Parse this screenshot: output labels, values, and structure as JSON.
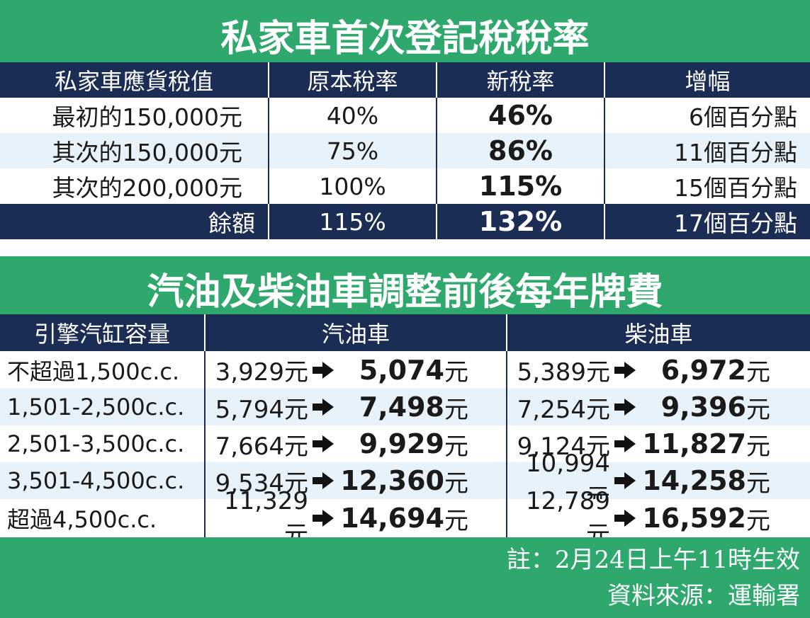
{
  "table1": {
    "title": "私家車首次登記稅稅率",
    "headers": [
      "私家車應貨稅值",
      "原本稅率",
      "新稅率",
      "增幅"
    ],
    "rows": [
      {
        "band": "最初的150,000元",
        "old": "40%",
        "new": "46%",
        "inc": "6個百分點"
      },
      {
        "band": "其次的150,000元",
        "old": "75%",
        "new": "86%",
        "inc": "11個百分點"
      },
      {
        "band": "其次的200,000元",
        "old": "100%",
        "new": "115%",
        "inc": "15個百分點"
      },
      {
        "band": "餘額",
        "old": "115%",
        "new": "132%",
        "inc": "17個百分點"
      }
    ]
  },
  "table2": {
    "title": "汽油及柴油車調整前後每年牌費",
    "headers": [
      "引擎汽缸容量",
      "汽油車",
      "柴油車"
    ],
    "unit": "元",
    "rows": [
      {
        "cc": "不超過1,500c.c.",
        "petrol_old": "3,929",
        "petrol_new": "5,074",
        "diesel_old": "5,389",
        "diesel_new": "6,972"
      },
      {
        "cc": "1,501-2,500c.c.",
        "petrol_old": "5,794",
        "petrol_new": "7,498",
        "diesel_old": "7,254",
        "diesel_new": "9,396"
      },
      {
        "cc": "2,501-3,500c.c.",
        "petrol_old": "7,664",
        "petrol_new": "9,929",
        "diesel_old": "9,124",
        "diesel_new": "11,827"
      },
      {
        "cc": "3,501-4,500c.c.",
        "petrol_old": "9,534",
        "petrol_new": "12,360",
        "diesel_old": "10,994",
        "diesel_new": "14,258"
      },
      {
        "cc": "超過4,500c.c.",
        "petrol_old": "11,329",
        "petrol_new": "14,694",
        "diesel_old": "12,789",
        "diesel_new": "16,592"
      }
    ]
  },
  "notes": {
    "effective": "註：2月24日上午11時生效",
    "source": "資料來源：運輸署"
  },
  "colors": {
    "green": "#2fa86e",
    "navy": "#1b2d55",
    "light_row": "#e8f2fb"
  }
}
